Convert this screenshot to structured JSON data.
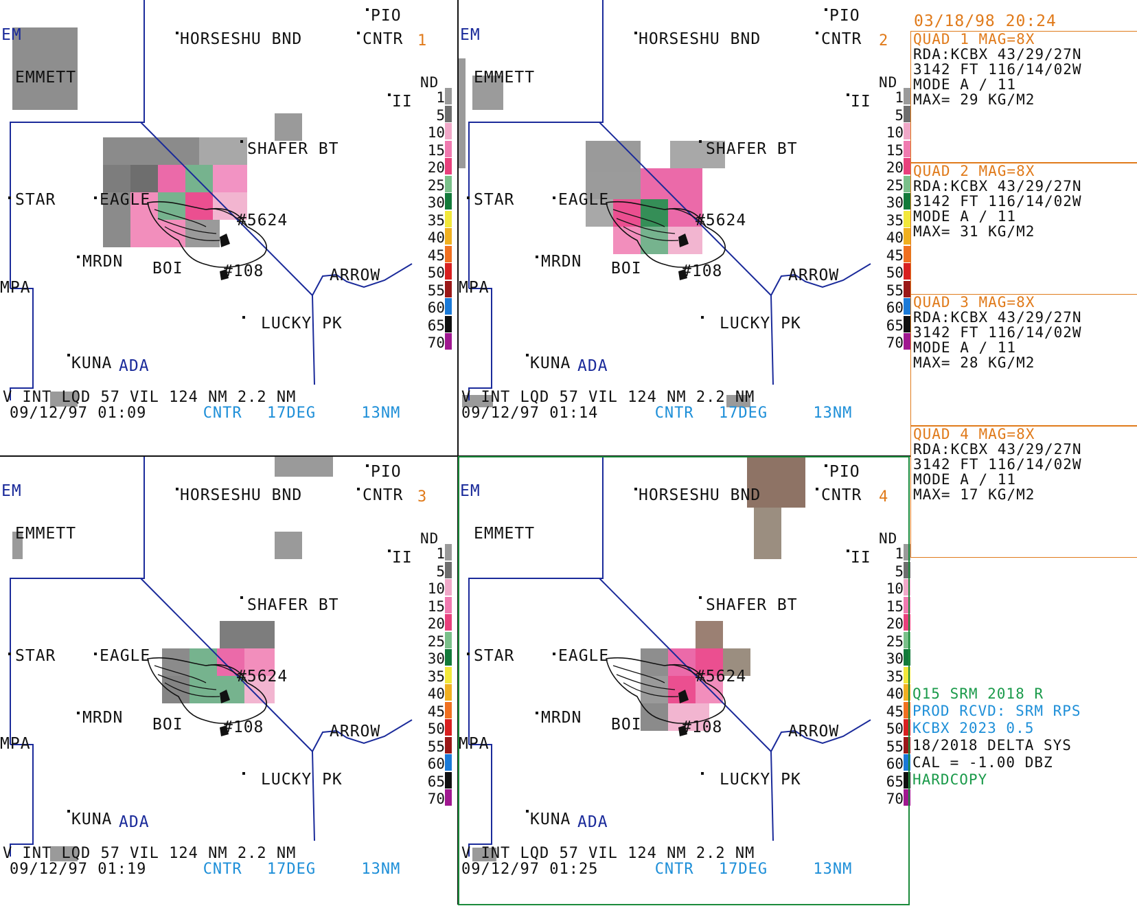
{
  "header": {
    "datetime": "03/18/98 20:24"
  },
  "legend": {
    "nd_label": "ND",
    "levels": [
      "1",
      "5",
      "10",
      "15",
      "20",
      "25",
      "30",
      "35",
      "40",
      "45",
      "50",
      "55",
      "60",
      "65",
      "70"
    ],
    "colors": [
      "#9a9a9a",
      "#6e6e6e",
      "#f0a8c8",
      "#f07ab0",
      "#e8407c",
      "#7ac08a",
      "#127a3a",
      "#f2e83a",
      "#f0b020",
      "#f07020",
      "#d82020",
      "#9a1818",
      "#1a7ad8",
      "#101010",
      "#a01890"
    ]
  },
  "place_names": {
    "pio": "PIO",
    "horseshu": "HORSESHU BND",
    "cntr": "CNTR",
    "em": "EM",
    "emmett": "EMMETT",
    "ii": "II",
    "shafer": "SHAFER BT",
    "star": "STAR",
    "eagle": "EAGLE",
    "n5624": "#5624",
    "mrdn": "MRDN",
    "boi": "BOI",
    "n108": "#108",
    "arrow": "ARROW",
    "mpa": "MPA",
    "lucky": "LUCKY PK",
    "kuna": "KUNA",
    "ada": "ADA"
  },
  "quadrants": [
    {
      "number": "1",
      "status_line1": "V INT LQD   57 VIL 124 NM     2.2 NM",
      "time": "09/12/97 01:09",
      "cntr": "CNTR",
      "deg": "17DEG",
      "range": "13NM"
    },
    {
      "number": "2",
      "status_line1": "V INT LQD   57 VIL 124 NM     2.2 NM",
      "time": "09/12/97 01:14",
      "cntr": "CNTR",
      "deg": "17DEG",
      "range": "13NM"
    },
    {
      "number": "3",
      "status_line1": "V INT LQD   57 VIL 124 NM     2.2 NM",
      "time": "09/12/97 01:19",
      "cntr": "CNTR",
      "deg": "17DEG",
      "range": "13NM"
    },
    {
      "number": "4",
      "status_line1": "V INT LQD   57 VIL 124 NM     2.2 NM",
      "time": "09/12/97 01:25",
      "cntr": "CNTR",
      "deg": "17DEG",
      "range": "13NM"
    }
  ],
  "info_panels": [
    {
      "title": "QUAD 1      MAG=8X",
      "rda": "RDA:KCBX 43/29/27N",
      "elev": "3142 FT 116/14/02W",
      "mode": "MODE A /     11",
      "max": "MAX= 29 KG/M2"
    },
    {
      "title": "QUAD 2      MAG=8X",
      "rda": "RDA:KCBX 43/29/27N",
      "elev": "3142 FT 116/14/02W",
      "mode": "MODE A /     11",
      "max": "MAX= 31 KG/M2"
    },
    {
      "title": "QUAD 3      MAG=8X",
      "rda": "RDA:KCBX 43/29/27N",
      "elev": "3142 FT 116/14/02W",
      "mode": "MODE A /     11",
      "max": "MAX= 28 KG/M2"
    },
    {
      "title": "QUAD 4      MAG=8X",
      "rda": "RDA:KCBX 43/29/27N",
      "elev": "3142 FT 116/14/02W",
      "mode": "MODE A /     11",
      "max": "MAX= 17 KG/M2"
    }
  ],
  "messages": {
    "line1": "Q15 SRM 2018      R",
    "line2": "PROD RCVD: SRM RPS",
    "line3": "KCBX 2023       0.5",
    "line4": "18/2018 DELTA SYS",
    "line5": "CAL =  -1.00 DBZ",
    "line6": "HARDCOPY"
  }
}
